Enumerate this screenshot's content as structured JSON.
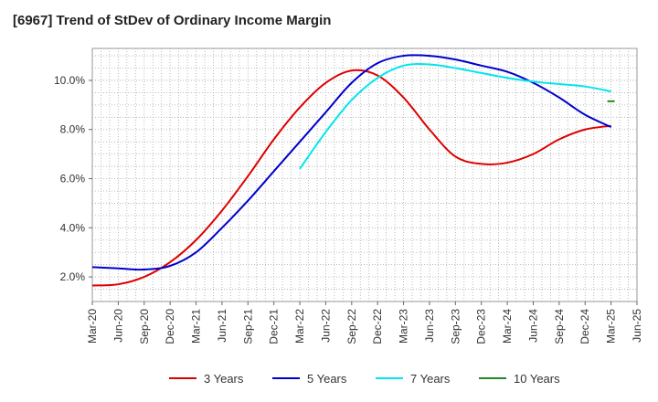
{
  "chart_data": {
    "type": "line",
    "title": "[6967]  Trend of StDev of Ordinary Income Margin",
    "xlabel": "",
    "ylabel": "",
    "x_ticks": [
      "Mar-20",
      "Jun-20",
      "Sep-20",
      "Dec-20",
      "Mar-21",
      "Jun-21",
      "Sep-21",
      "Dec-21",
      "Mar-22",
      "Jun-22",
      "Sep-22",
      "Dec-22",
      "Mar-23",
      "Jun-23",
      "Sep-23",
      "Dec-23",
      "Mar-24",
      "Jun-24",
      "Sep-24",
      "Dec-24",
      "Mar-25",
      "Jun-25"
    ],
    "y_ticks": [
      "2.0%",
      "4.0%",
      "6.0%",
      "8.0%",
      "10.0%"
    ],
    "y_tick_values": [
      2,
      4,
      6,
      8,
      10
    ],
    "ylim": [
      1.0,
      11.3
    ],
    "grid": true,
    "legend_position": "bottom",
    "series": [
      {
        "name": "3 Years",
        "color": "#dd0000",
        "x": [
          "Mar-20",
          "Jun-20",
          "Sep-20",
          "Dec-20",
          "Mar-21",
          "Jun-21",
          "Sep-21",
          "Dec-21",
          "Mar-22",
          "Jun-22",
          "Sep-22",
          "Dec-22",
          "Mar-23",
          "Jun-23",
          "Sep-23",
          "Dec-23",
          "Mar-24",
          "Jun-24",
          "Sep-24",
          "Dec-24",
          "Mar-25"
        ],
        "values": [
          1.65,
          1.7,
          2.0,
          2.6,
          3.5,
          4.7,
          6.1,
          7.6,
          8.9,
          9.9,
          10.4,
          10.2,
          9.3,
          8.0,
          6.9,
          6.6,
          6.65,
          7.0,
          7.6,
          8.0,
          8.15
        ]
      },
      {
        "name": "5 Years",
        "color": "#0000cc",
        "x": [
          "Mar-20",
          "Jun-20",
          "Sep-20",
          "Dec-20",
          "Mar-21",
          "Jun-21",
          "Sep-21",
          "Dec-21",
          "Mar-22",
          "Jun-22",
          "Sep-22",
          "Dec-22",
          "Mar-23",
          "Jun-23",
          "Sep-23",
          "Dec-23",
          "Mar-24",
          "Jun-24",
          "Sep-24",
          "Dec-24",
          "Mar-25"
        ],
        "values": [
          2.4,
          2.35,
          2.3,
          2.45,
          3.0,
          4.0,
          5.1,
          6.3,
          7.5,
          8.7,
          9.9,
          10.7,
          11.0,
          11.0,
          10.85,
          10.6,
          10.35,
          9.9,
          9.3,
          8.6,
          8.1
        ]
      },
      {
        "name": "7 Years",
        "color": "#00e5ee",
        "x": [
          "Mar-22",
          "Jun-22",
          "Sep-22",
          "Dec-22",
          "Mar-23",
          "Jun-23",
          "Sep-23",
          "Dec-23",
          "Mar-24",
          "Jun-24",
          "Sep-24",
          "Dec-24",
          "Mar-25"
        ],
        "values": [
          6.4,
          7.9,
          9.2,
          10.1,
          10.6,
          10.65,
          10.5,
          10.3,
          10.1,
          9.95,
          9.85,
          9.75,
          9.55
        ]
      },
      {
        "name": "10 Years",
        "color": "#228822",
        "x": [
          "Mar-25"
        ],
        "values": [
          9.15
        ]
      }
    ]
  }
}
